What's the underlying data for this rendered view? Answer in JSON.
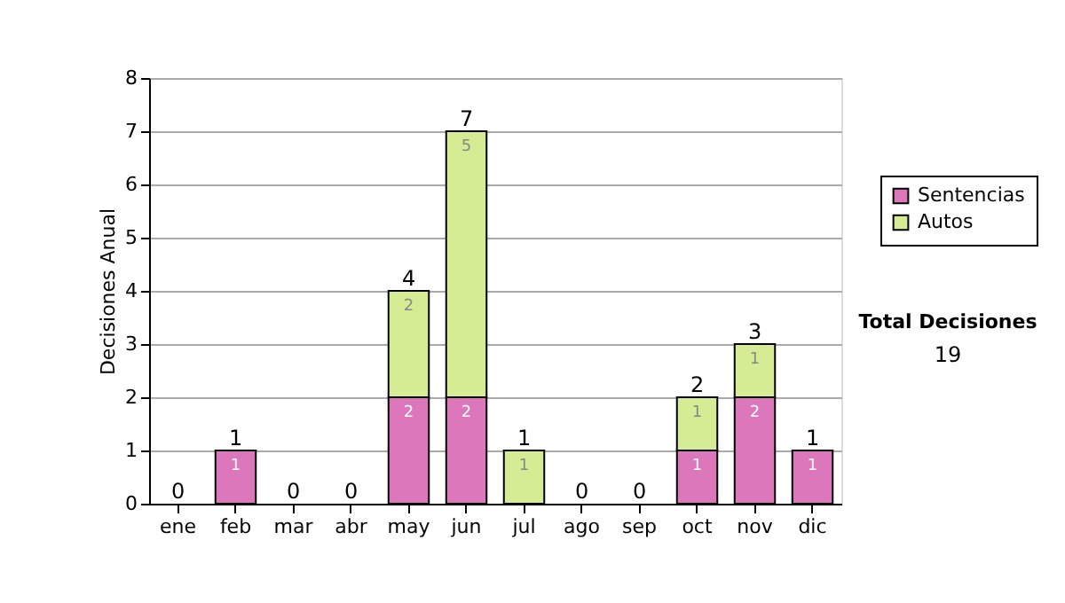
{
  "chart_data": {
    "type": "bar",
    "stacked": true,
    "ylabel": "Decisiones Anual",
    "categories": [
      "ene",
      "feb",
      "mar",
      "abr",
      "may",
      "jun",
      "jul",
      "ago",
      "sep",
      "oct",
      "nov",
      "dic"
    ],
    "series": [
      {
        "name": "Sentencias",
        "color": "#dd77bb",
        "values": [
          0,
          1,
          0,
          0,
          2,
          2,
          0,
          0,
          0,
          1,
          2,
          1
        ],
        "value_labels": [
          null,
          "1",
          null,
          null,
          "2",
          "2",
          null,
          null,
          null,
          "1",
          "2",
          "1"
        ]
      },
      {
        "name": "Autos",
        "color": "#d6ec94",
        "values": [
          0,
          0,
          0,
          0,
          2,
          5,
          1,
          0,
          0,
          1,
          1,
          0
        ],
        "value_labels": [
          null,
          null,
          null,
          null,
          "2",
          "5",
          "1",
          null,
          null,
          "1",
          "1",
          null
        ]
      }
    ],
    "totals": [
      "0",
      "1",
      "0",
      "0",
      "4",
      "7",
      "1",
      "0",
      "0",
      "2",
      "3",
      "1"
    ],
    "ylim": [
      0,
      8
    ],
    "yticks": [
      0,
      1,
      2,
      3,
      4,
      5,
      6,
      7,
      8
    ],
    "grid": "y",
    "legend": "right",
    "annotations": [
      "Total Decisiones",
      "19"
    ]
  }
}
